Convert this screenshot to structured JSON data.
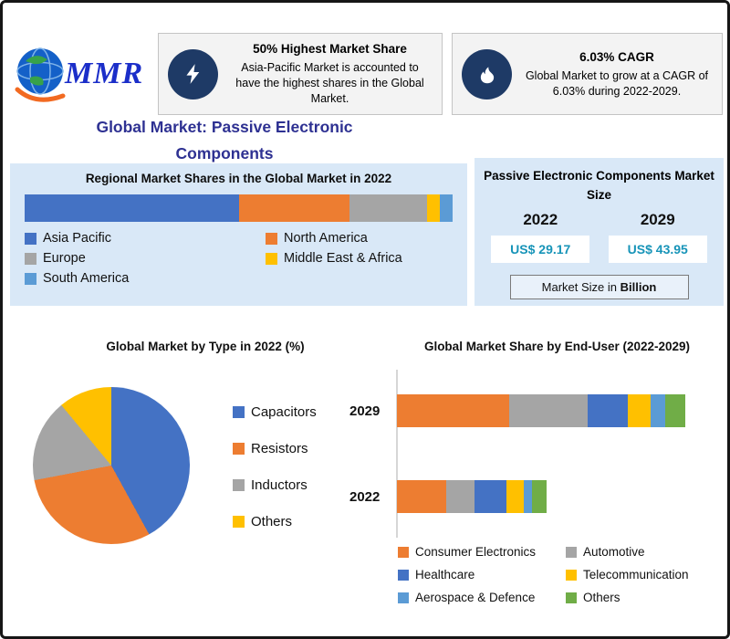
{
  "logo": {
    "brand": "MMR"
  },
  "header": {
    "highlight_boxes": [
      {
        "icon": "lightning-bolt",
        "title": "50% Highest Market Share",
        "body": "Asia-Pacific Market is accounted to have the highest shares in the Global Market."
      },
      {
        "icon": "flame",
        "title": "6.03% CAGR",
        "body": "Global Market to grow at a CAGR of 6.03% during 2022-2029."
      }
    ]
  },
  "page_title": "Global Market: Passive Electronic Components",
  "chart_data": [
    {
      "type": "bar",
      "subtype": "stacked-horizontal-single",
      "title": "Regional Market Shares in the Global Market in 2022",
      "categories": [
        "2022"
      ],
      "unit": "%",
      "legend_position": "bottom",
      "series": [
        {
          "name": "Asia Pacific",
          "color": "#4472C4",
          "values": [
            50
          ]
        },
        {
          "name": "North America",
          "color": "#ED7D31",
          "values": [
            26
          ]
        },
        {
          "name": "Europe",
          "color": "#A5A5A5",
          "values": [
            18
          ]
        },
        {
          "name": "Middle East & Africa",
          "color": "#FFC000",
          "values": [
            3
          ]
        },
        {
          "name": "South America",
          "color": "#5B9BD5",
          "values": [
            3
          ]
        }
      ]
    },
    {
      "type": "pie",
      "title": "Global Market by Type in 2022 (%)",
      "labels": [
        "Capacitors",
        "Resistors",
        "Inductors",
        "Others"
      ],
      "values": [
        42,
        30,
        17,
        11
      ],
      "colors": [
        "#4472C4",
        "#ED7D31",
        "#A5A5A5",
        "#FFC000"
      ],
      "legend_position": "right"
    },
    {
      "type": "bar",
      "subtype": "stacked-horizontal",
      "title": "Global Market Share by End-User (2022-2029)",
      "categories": [
        "2029",
        "2022"
      ],
      "unit": "relative width %",
      "legend_position": "bottom",
      "series": [
        {
          "name": "Consumer Electronics",
          "color": "#ED7D31",
          "values": [
            39,
            17
          ]
        },
        {
          "name": "Automotive",
          "color": "#A5A5A5",
          "values": [
            27,
            10
          ]
        },
        {
          "name": "Healthcare",
          "color": "#4472C4",
          "values": [
            14,
            11
          ]
        },
        {
          "name": "Telecommunication",
          "color": "#FFC000",
          "values": [
            8,
            6
          ]
        },
        {
          "name": "Aerospace & Defence",
          "color": "#5B9BD5",
          "values": [
            5,
            3
          ]
        },
        {
          "name": "Others",
          "color": "#70AD47",
          "values": [
            7,
            5
          ]
        }
      ]
    },
    {
      "type": "table",
      "title": "Passive Electronic Components Market Size",
      "columns": [
        "2022",
        "2029"
      ],
      "rows": [
        [
          "US$ 29.17",
          "US$ 43.95"
        ]
      ],
      "note_prefix": "Market Size in ",
      "note_bold": "Billion",
      "value_color": "#1794B8"
    }
  ]
}
